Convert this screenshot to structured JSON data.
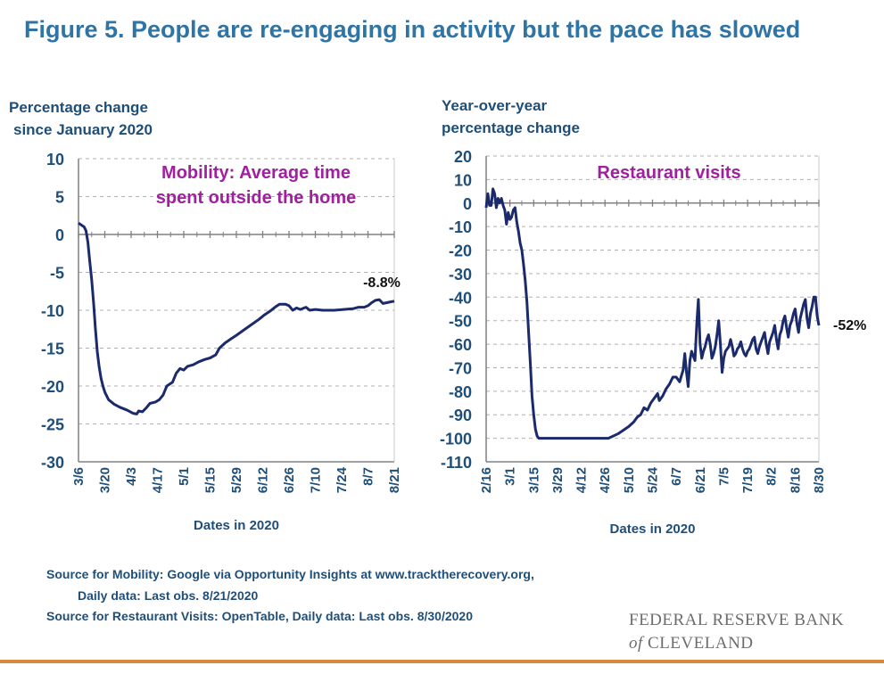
{
  "figure": {
    "title": "Figure 5. People are re-engaging in activity but the pace has slowed"
  },
  "colors": {
    "title": "#2e74a5",
    "axis_text": "#1f4e79",
    "series": "#1b2a6b",
    "annotation": "#a020a0",
    "rule": "#d6893a",
    "grid": "#b0b0b0"
  },
  "chart_data": [
    {
      "type": "line",
      "ylabel_lines": [
        "Percentage change",
        "since January 2020"
      ],
      "xlabel": "Dates in 2020",
      "annotation_lines": [
        "Mobility: Average time",
        "spent outside the home"
      ],
      "end_label": "-8.8%",
      "ylim": [
        -30,
        10
      ],
      "yticks": [
        10,
        5,
        0,
        -5,
        -10,
        -15,
        -20,
        -25,
        -30
      ],
      "xlim": [
        "2020-03-06",
        "2020-08-21"
      ],
      "xtick_labels": [
        "3/6",
        "3/20",
        "4/3",
        "4/17",
        "5/1",
        "5/15",
        "5/29",
        "6/12",
        "6/26",
        "7/10",
        "7/24",
        "8/7",
        "8/21"
      ],
      "grid": "horizontal dashed",
      "series": [
        {
          "points": [
            [
              "2020-03-06",
              1.5
            ],
            [
              "2020-03-09",
              1.0
            ],
            [
              "2020-03-10",
              0.5
            ],
            [
              "2020-03-11",
              -1.0
            ],
            [
              "2020-03-12",
              -3.5
            ],
            [
              "2020-03-13",
              -6.0
            ],
            [
              "2020-03-14",
              -9.0
            ],
            [
              "2020-03-15",
              -12.5
            ],
            [
              "2020-03-16",
              -15.5
            ],
            [
              "2020-03-17",
              -17.5
            ],
            [
              "2020-03-18",
              -19.0
            ],
            [
              "2020-03-19",
              -20.0
            ],
            [
              "2020-03-20",
              -20.8
            ],
            [
              "2020-03-22",
              -21.8
            ],
            [
              "2020-03-25",
              -22.4
            ],
            [
              "2020-03-28",
              -22.8
            ],
            [
              "2020-04-01",
              -23.2
            ],
            [
              "2020-04-04",
              -23.6
            ],
            [
              "2020-04-06",
              -23.7
            ],
            [
              "2020-04-07",
              -23.3
            ],
            [
              "2020-04-09",
              -23.4
            ],
            [
              "2020-04-11",
              -22.9
            ],
            [
              "2020-04-13",
              -22.3
            ],
            [
              "2020-04-16",
              -22.1
            ],
            [
              "2020-04-18",
              -21.8
            ],
            [
              "2020-04-20",
              -21.2
            ],
            [
              "2020-04-22",
              -20.0
            ],
            [
              "2020-04-25",
              -19.5
            ],
            [
              "2020-04-27",
              -18.3
            ],
            [
              "2020-04-29",
              -17.7
            ],
            [
              "2020-05-01",
              -17.9
            ],
            [
              "2020-05-03",
              -17.4
            ],
            [
              "2020-05-06",
              -17.2
            ],
            [
              "2020-05-09",
              -16.8
            ],
            [
              "2020-05-12",
              -16.5
            ],
            [
              "2020-05-15",
              -16.3
            ],
            [
              "2020-05-18",
              -15.9
            ],
            [
              "2020-05-20",
              -15.0
            ],
            [
              "2020-05-23",
              -14.3
            ],
            [
              "2020-05-26",
              -13.8
            ],
            [
              "2020-05-29",
              -13.3
            ],
            [
              "2020-06-02",
              -12.6
            ],
            [
              "2020-06-06",
              -11.9
            ],
            [
              "2020-06-10",
              -11.2
            ],
            [
              "2020-06-13",
              -10.6
            ],
            [
              "2020-06-16",
              -10.1
            ],
            [
              "2020-06-19",
              -9.5
            ],
            [
              "2020-06-21",
              -9.2
            ],
            [
              "2020-06-24",
              -9.2
            ],
            [
              "2020-06-26",
              -9.4
            ],
            [
              "2020-06-28",
              -10.0
            ],
            [
              "2020-06-30",
              -9.7
            ],
            [
              "2020-07-02",
              -9.9
            ],
            [
              "2020-07-05",
              -9.6
            ],
            [
              "2020-07-07",
              -10.0
            ],
            [
              "2020-07-10",
              -9.9
            ],
            [
              "2020-07-14",
              -10.0
            ],
            [
              "2020-07-20",
              -10.0
            ],
            [
              "2020-07-25",
              -9.9
            ],
            [
              "2020-07-30",
              -9.8
            ],
            [
              "2020-08-02",
              -9.6
            ],
            [
              "2020-08-05",
              -9.6
            ],
            [
              "2020-08-07",
              -9.4
            ],
            [
              "2020-08-09",
              -9.0
            ],
            [
              "2020-08-11",
              -8.7
            ],
            [
              "2020-08-13",
              -8.6
            ],
            [
              "2020-08-15",
              -9.1
            ],
            [
              "2020-08-17",
              -9.0
            ],
            [
              "2020-08-19",
              -8.9
            ],
            [
              "2020-08-21",
              -8.8
            ]
          ]
        }
      ]
    },
    {
      "type": "line",
      "ylabel_lines": [
        "Year-over-year",
        "percentage change"
      ],
      "xlabel": "Dates in 2020",
      "annotation_lines": [
        "Restaurant visits"
      ],
      "end_label": "-52%",
      "ylim": [
        -110,
        20
      ],
      "yticks": [
        20,
        10,
        0,
        -10,
        -20,
        -30,
        -40,
        -50,
        -60,
        -70,
        -80,
        -90,
        -100,
        -110
      ],
      "xlim": [
        "2020-02-16",
        "2020-08-30"
      ],
      "xtick_labels": [
        "2/16",
        "3/1",
        "3/15",
        "3/29",
        "4/12",
        "4/26",
        "5/10",
        "5/24",
        "6/7",
        "6/21",
        "7/5",
        "7/19",
        "8/2",
        "8/16",
        "8/30"
      ],
      "grid": "horizontal dashed",
      "series": [
        {
          "points": [
            [
              "2020-02-16",
              -2
            ],
            [
              "2020-02-17",
              4
            ],
            [
              "2020-02-18",
              -1
            ],
            [
              "2020-02-19",
              -1
            ],
            [
              "2020-02-20",
              6
            ],
            [
              "2020-02-21",
              4
            ],
            [
              "2020-02-22",
              -2
            ],
            [
              "2020-02-23",
              2
            ],
            [
              "2020-02-24",
              0
            ],
            [
              "2020-02-25",
              2
            ],
            [
              "2020-02-26",
              -1
            ],
            [
              "2020-02-27",
              -3
            ],
            [
              "2020-02-28",
              -9
            ],
            [
              "2020-02-29",
              -4
            ],
            [
              "2020-03-01",
              -7
            ],
            [
              "2020-03-02",
              -6
            ],
            [
              "2020-03-03",
              -3
            ],
            [
              "2020-03-04",
              -2
            ],
            [
              "2020-03-05",
              -8
            ],
            [
              "2020-03-06",
              -12
            ],
            [
              "2020-03-07",
              -17
            ],
            [
              "2020-03-08",
              -20
            ],
            [
              "2020-03-09",
              -26
            ],
            [
              "2020-03-10",
              -33
            ],
            [
              "2020-03-11",
              -42
            ],
            [
              "2020-03-12",
              -55
            ],
            [
              "2020-03-13",
              -68
            ],
            [
              "2020-03-14",
              -82
            ],
            [
              "2020-03-15",
              -90
            ],
            [
              "2020-03-16",
              -96
            ],
            [
              "2020-03-17",
              -99
            ],
            [
              "2020-03-18",
              -100
            ],
            [
              "2020-04-28",
              -100
            ],
            [
              "2020-05-01",
              -99
            ],
            [
              "2020-05-04",
              -98
            ],
            [
              "2020-05-07",
              -96.5
            ],
            [
              "2020-05-10",
              -95
            ],
            [
              "2020-05-13",
              -93
            ],
            [
              "2020-05-15",
              -91
            ],
            [
              "2020-05-17",
              -90
            ],
            [
              "2020-05-19",
              -87
            ],
            [
              "2020-05-21",
              -88
            ],
            [
              "2020-05-23",
              -85
            ],
            [
              "2020-05-25",
              -83
            ],
            [
              "2020-05-27",
              -81
            ],
            [
              "2020-05-28",
              -84
            ],
            [
              "2020-05-30",
              -82
            ],
            [
              "2020-06-01",
              -79
            ],
            [
              "2020-06-03",
              -77
            ],
            [
              "2020-06-05",
              -74
            ],
            [
              "2020-06-07",
              -74
            ],
            [
              "2020-06-09",
              -76
            ],
            [
              "2020-06-11",
              -71
            ],
            [
              "2020-06-12",
              -64
            ],
            [
              "2020-06-13",
              -72
            ],
            [
              "2020-06-14",
              -78
            ],
            [
              "2020-06-15",
              -67
            ],
            [
              "2020-06-16",
              -63
            ],
            [
              "2020-06-17",
              -65
            ],
            [
              "2020-06-18",
              -67
            ],
            [
              "2020-06-19",
              -52
            ],
            [
              "2020-06-20",
              -41
            ],
            [
              "2020-06-21",
              -60
            ],
            [
              "2020-06-22",
              -66
            ],
            [
              "2020-06-23",
              -63
            ],
            [
              "2020-06-24",
              -61
            ],
            [
              "2020-06-25",
              -58
            ],
            [
              "2020-06-26",
              -56
            ],
            [
              "2020-06-27",
              -60
            ],
            [
              "2020-06-28",
              -66
            ],
            [
              "2020-06-29",
              -64
            ],
            [
              "2020-06-30",
              -61
            ],
            [
              "2020-07-01",
              -56
            ],
            [
              "2020-07-02",
              -50
            ],
            [
              "2020-07-03",
              -60
            ],
            [
              "2020-07-04",
              -72
            ],
            [
              "2020-07-05",
              -66
            ],
            [
              "2020-07-06",
              -63
            ],
            [
              "2020-07-07",
              -62
            ],
            [
              "2020-07-08",
              -61
            ],
            [
              "2020-07-09",
              -58
            ],
            [
              "2020-07-10",
              -61
            ],
            [
              "2020-07-11",
              -65
            ],
            [
              "2020-07-12",
              -64
            ],
            [
              "2020-07-13",
              -62
            ],
            [
              "2020-07-14",
              -61
            ],
            [
              "2020-07-15",
              -59
            ],
            [
              "2020-07-16",
              -62
            ],
            [
              "2020-07-17",
              -64
            ],
            [
              "2020-07-18",
              -65
            ],
            [
              "2020-07-19",
              -63
            ],
            [
              "2020-07-20",
              -62
            ],
            [
              "2020-07-21",
              -60
            ],
            [
              "2020-07-22",
              -58
            ],
            [
              "2020-07-23",
              -57
            ],
            [
              "2020-07-24",
              -62
            ],
            [
              "2020-07-25",
              -64
            ],
            [
              "2020-07-26",
              -61
            ],
            [
              "2020-07-27",
              -59
            ],
            [
              "2020-07-28",
              -57
            ],
            [
              "2020-07-29",
              -55
            ],
            [
              "2020-07-30",
              -60
            ],
            [
              "2020-07-31",
              -64
            ],
            [
              "2020-08-01",
              -59
            ],
            [
              "2020-08-02",
              -57
            ],
            [
              "2020-08-03",
              -55
            ],
            [
              "2020-08-04",
              -52
            ],
            [
              "2020-08-05",
              -58
            ],
            [
              "2020-08-06",
              -62
            ],
            [
              "2020-08-07",
              -56
            ],
            [
              "2020-08-08",
              -54
            ],
            [
              "2020-08-09",
              -50
            ],
            [
              "2020-08-10",
              -48
            ],
            [
              "2020-08-11",
              -53
            ],
            [
              "2020-08-12",
              -57
            ],
            [
              "2020-08-13",
              -52
            ],
            [
              "2020-08-14",
              -50
            ],
            [
              "2020-08-15",
              -47
            ],
            [
              "2020-08-16",
              -45
            ],
            [
              "2020-08-17",
              -51
            ],
            [
              "2020-08-18",
              -55
            ],
            [
              "2020-08-19",
              -49
            ],
            [
              "2020-08-20",
              -46
            ],
            [
              "2020-08-21",
              -43
            ],
            [
              "2020-08-22",
              -41
            ],
            [
              "2020-08-23",
              -49
            ],
            [
              "2020-08-24",
              -53
            ],
            [
              "2020-08-25",
              -47
            ],
            [
              "2020-08-26",
              -44
            ],
            [
              "2020-08-27",
              -40
            ],
            [
              "2020-08-28",
              -40
            ],
            [
              "2020-08-29",
              -48
            ],
            [
              "2020-08-30",
              -52
            ]
          ]
        }
      ]
    }
  ],
  "sources": {
    "line1": "Source for Mobility: Google via Opportunity Insights at www.tracktherecovery.org,",
    "line2": "Daily data: Last obs. 8/21/2020",
    "line3": "Source for Restaurant Visits: OpenTable, Daily data: Last obs. 8/30/2020"
  },
  "brand": {
    "line1": "FEDERAL RESERVE BANK",
    "line2_italic": "of",
    "line2_rest": " CLEVELAND"
  }
}
